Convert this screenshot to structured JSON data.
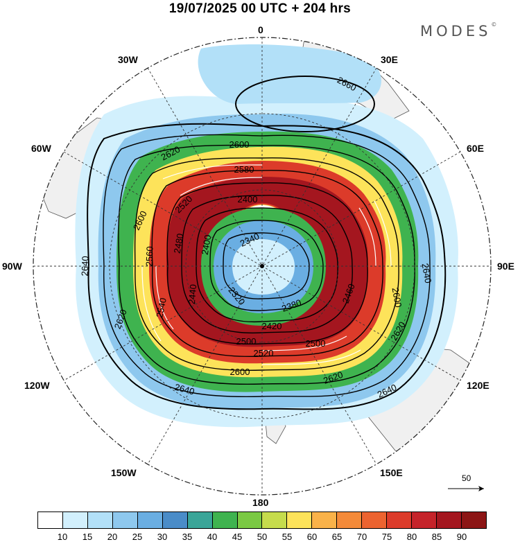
{
  "header": {
    "title": "19/07/2025  00 UTC  + 204 hrs",
    "brand": "MODES",
    "brand_mark": "©"
  },
  "map": {
    "projection": "south-polar-stereographic",
    "longitude_labels": {
      "top": "0",
      "bottom": "180",
      "left": "90W",
      "right": "90E",
      "w30": "30W",
      "e30": "30E",
      "w60": "60W",
      "e60": "60E",
      "w120": "120W",
      "e120": "120E",
      "w150": "150W",
      "e150": "150E"
    },
    "contour_labels": [
      "2660",
      "2620",
      "2600",
      "2580",
      "2520",
      "2400",
      "2600",
      "2480",
      "2400",
      "2340",
      "2640",
      "2560",
      "2440",
      "2320",
      "2540",
      "2380",
      "2420",
      "2500",
      "2520",
      "2500",
      "2600",
      "2460",
      "2600",
      "2640",
      "2620",
      "2620",
      "2640",
      "2640",
      "2620"
    ],
    "reference_vector": "50",
    "colors": {
      "land": "#f0f0f0",
      "coast": "#555555",
      "vector": "#ffffff"
    }
  },
  "colorbar": {
    "colors": [
      "#ffffff",
      "#d2f0fd",
      "#b2e0f8",
      "#8ec8ee",
      "#6aaee2",
      "#4a8cc8",
      "#3aa598",
      "#3fb34f",
      "#7ac943",
      "#c6dc4c",
      "#fde35a",
      "#f9b249",
      "#f48a39",
      "#ec6330",
      "#dc3b2a",
      "#c5232a",
      "#a4161f",
      "#8c1515"
    ],
    "ticks": [
      "10",
      "15",
      "20",
      "25",
      "30",
      "35",
      "40",
      "45",
      "50",
      "55",
      "60",
      "65",
      "70",
      "75",
      "80",
      "85",
      "90"
    ]
  }
}
